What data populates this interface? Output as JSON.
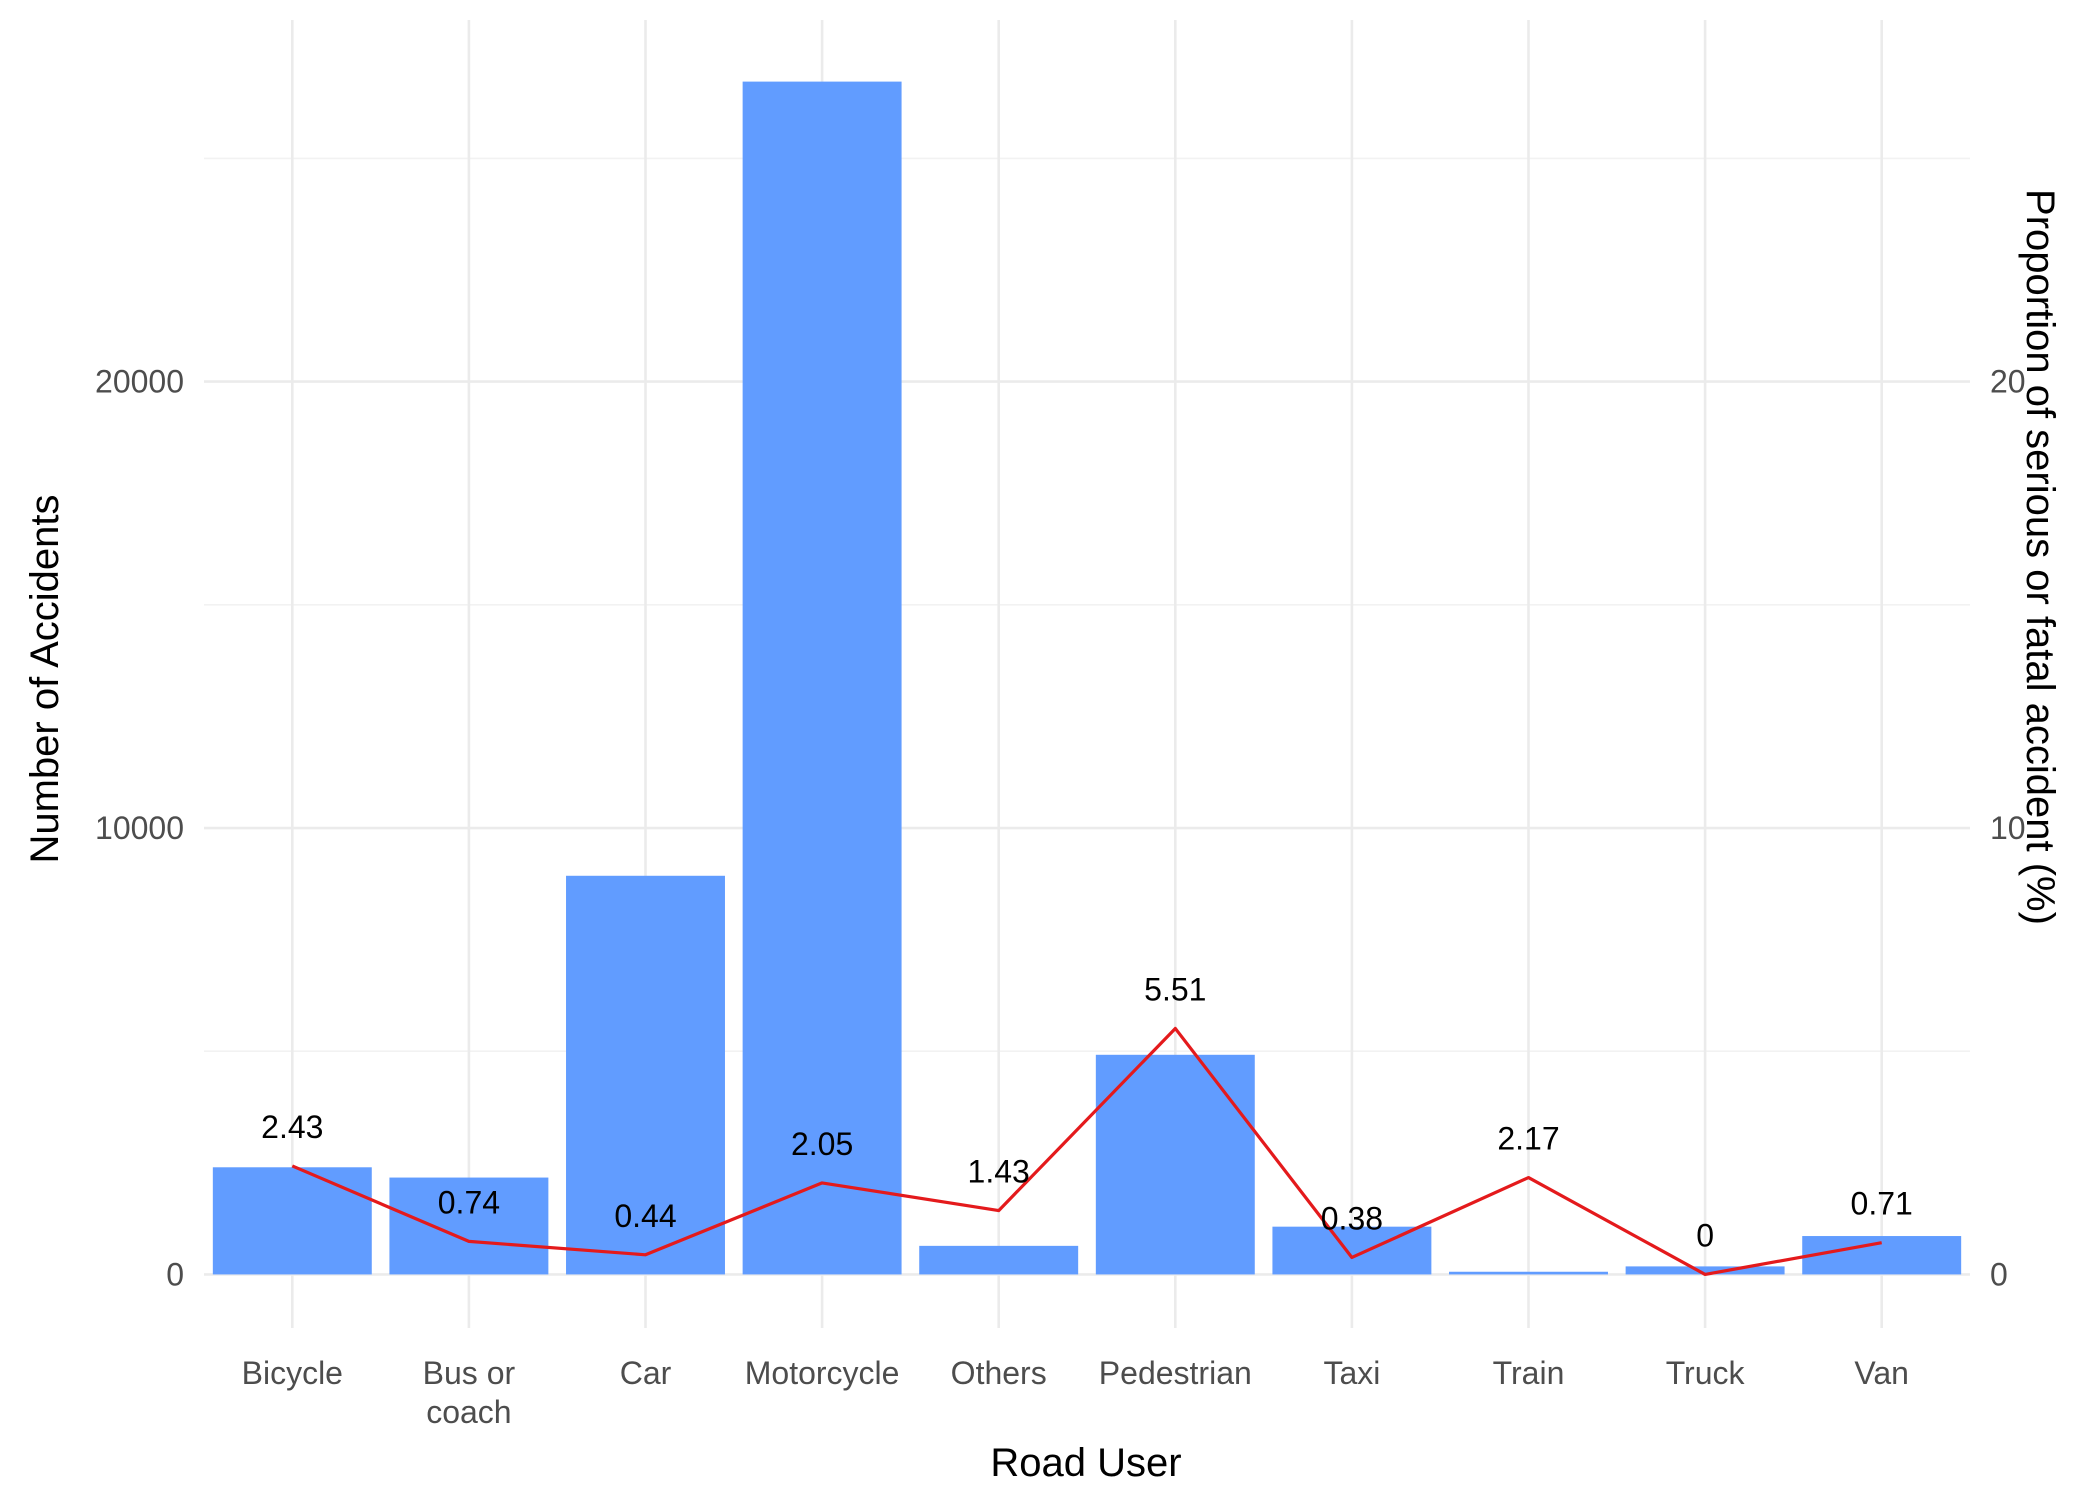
{
  "chart_data": {
    "type": "bar",
    "categories": [
      "Bicycle",
      "Bus or coach",
      "Car",
      "Motorcycle",
      "Others",
      "Pedestrian",
      "Taxi",
      "Train",
      "Truck",
      "Van"
    ],
    "category_lines": [
      [
        "Bicycle"
      ],
      [
        "Bus or",
        "coach"
      ],
      [
        "Car"
      ],
      [
        "Motorcycle"
      ],
      [
        "Others"
      ],
      [
        "Pedestrian"
      ],
      [
        "Taxi"
      ],
      [
        "Train"
      ],
      [
        "Truck"
      ],
      [
        "Van"
      ]
    ],
    "values": [
      2400,
      2170,
      8930,
      26720,
      640,
      4920,
      1070,
      60,
      180,
      860
    ],
    "line_series": {
      "axis": "secondary",
      "values": [
        2.43,
        0.74,
        0.44,
        2.05,
        1.43,
        5.51,
        0.38,
        2.17,
        0,
        0.71
      ],
      "labels": [
        "2.43",
        "0.74",
        "0.44",
        "2.05",
        "1.43",
        "5.51",
        "0.38",
        "2.17",
        "0",
        "0.71"
      ]
    },
    "xlabel": "Road User",
    "ylabel": "Number of Accidents",
    "y2label": "Proportion of serious or fatal accident (%)",
    "ylim": [
      -1200,
      28100
    ],
    "y_ticks": [
      0,
      10000,
      20000
    ],
    "y_tick_labels": [
      "0",
      "10000",
      "20000"
    ],
    "y2lim": [
      -1.2,
      28.1
    ],
    "y2_ticks": [
      0,
      10,
      20
    ],
    "y2_tick_labels": [
      "0",
      "10",
      "20"
    ],
    "grid": true,
    "legend": "none",
    "colors": {
      "bar": "#619CFF",
      "line": "#E41A1C",
      "grid": "#EBEBEB",
      "text": "#000000",
      "tick_text": "#4D4D4D"
    }
  }
}
